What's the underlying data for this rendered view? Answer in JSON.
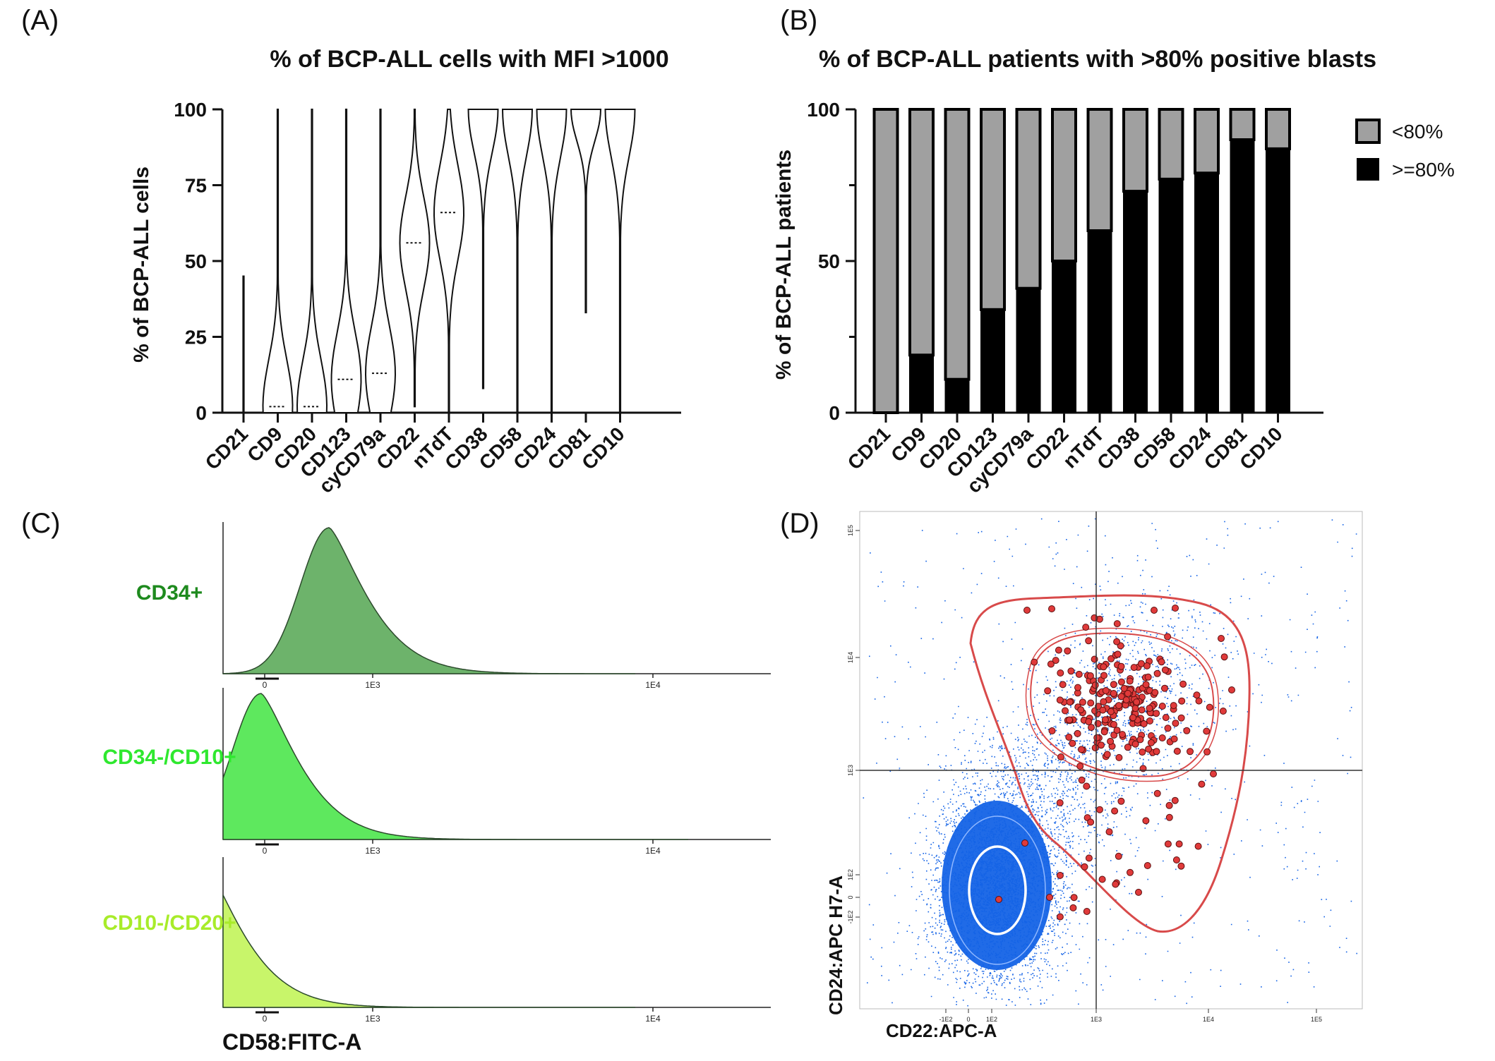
{
  "panels": {
    "a": "(A)",
    "b": "(B)",
    "c": "(C)",
    "d": "(D)"
  },
  "colors": {
    "bar_pos": "#000000",
    "bar_neg": "#a0a0a0",
    "cd34": "#6db36b",
    "cd34_text": "#1e8a1e",
    "cd34cd10": "#5ee85e",
    "cd34cd10_text": "#2fe82f",
    "cd10cd20": "#c8f56a",
    "cd10cd20_text": "#a8ec2a",
    "dots_blue": "#1463e6",
    "gate_red": "#d84a4a"
  },
  "chart_data": [
    {
      "type": "violin",
      "title": "% of BCP-ALL cells with MFI >1000",
      "ylabel": "% of BCP-ALL cells",
      "ylim": [
        0,
        100
      ],
      "yticks": [
        "0",
        "25",
        "50",
        "75",
        "100"
      ],
      "categories": [
        "CD21",
        "CD9",
        "CD20",
        "CD123",
        "cyCD79a",
        "CD22",
        "nTdT",
        "CD38",
        "CD58",
        "CD24",
        "CD81",
        "CD10"
      ],
      "min": [
        0,
        0,
        0,
        0,
        0,
        2,
        0,
        8,
        0,
        0,
        33,
        0
      ],
      "max": [
        45,
        100,
        100,
        100,
        100,
        100,
        100,
        100,
        100,
        100,
        100,
        100
      ],
      "median": [
        0,
        2,
        2,
        11,
        13,
        56,
        66,
        100,
        100,
        100,
        100,
        100
      ]
    },
    {
      "type": "bar",
      "title": "% of BCP-ALL patients with >80% positive blasts",
      "ylabel": "% of BCP-ALL patients",
      "ylim": [
        0,
        100
      ],
      "yticks": [
        "0",
        "50",
        "100"
      ],
      "categories": [
        "CD21",
        "CD9",
        "CD20",
        "CD123",
        "cyCD79a",
        "CD22",
        "nTdT",
        "CD38",
        "CD58",
        "CD24",
        "CD81",
        "CD10"
      ],
      "series": [
        {
          "name": ">=80%",
          "values": [
            0,
            19,
            11,
            34,
            41,
            50,
            60,
            73,
            77,
            79,
            90,
            87
          ]
        },
        {
          "name": "<80%",
          "values": [
            100,
            81,
            89,
            66,
            59,
            50,
            40,
            27,
            23,
            21,
            10,
            13
          ]
        }
      ],
      "legend": "right"
    },
    {
      "type": "area",
      "subtype": "histograms",
      "xlabel": "CD58:FITC-A",
      "xticks": [
        "0",
        "1E3",
        "1E4"
      ],
      "series": [
        {
          "name": "CD34+",
          "peak_at": 700
        },
        {
          "name": "CD34-/CD10+",
          "peak_at": 400
        },
        {
          "name": "CD10-/CD20+",
          "peak_at": 250
        }
      ]
    },
    {
      "type": "scatter",
      "xlabel": "CD22:APC-A",
      "ylabel": "CD24:APC H7-A",
      "xticks": [
        "-1E2",
        "0",
        "1E2",
        "1E3",
        "1E4",
        "1E5"
      ],
      "yticks": [
        "1E5",
        "1E4",
        "1E3",
        "1E2",
        "0",
        "-1E2"
      ]
    }
  ]
}
